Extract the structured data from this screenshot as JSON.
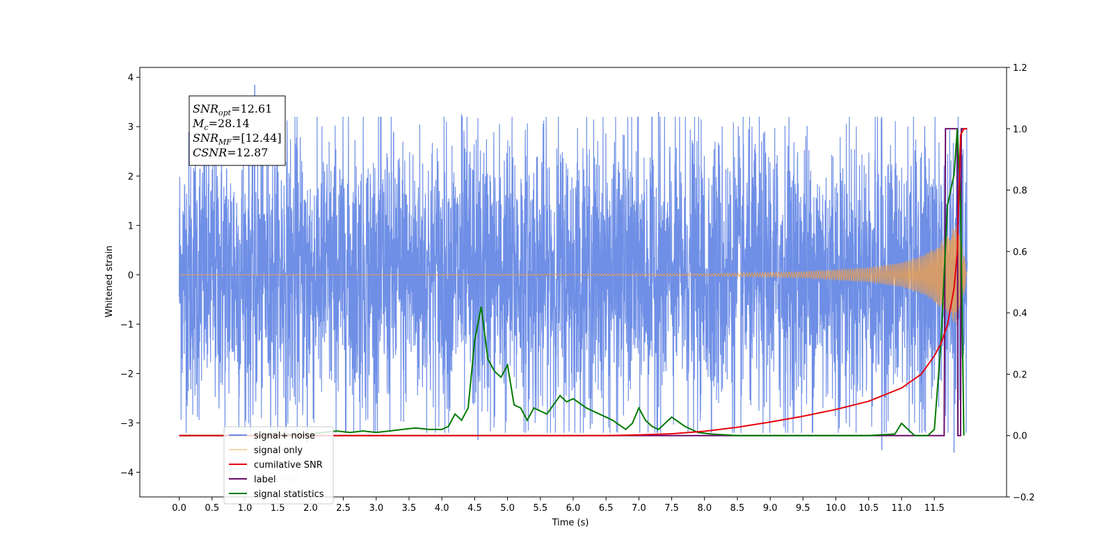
{
  "chart_data": {
    "type": "line",
    "xlabel": "Time (s)",
    "ylabel": "Whitened strain",
    "ylim": [
      -4.5,
      4.2
    ],
    "y2lim": [
      -0.2,
      1.2
    ],
    "xlim": [
      -0.6,
      12.6
    ],
    "x_ticks": [
      "0.0",
      "0.5",
      "1.0",
      "1.5",
      "2.0",
      "2.5",
      "3.0",
      "3.5",
      "4.0",
      "4.5",
      "5.0",
      "5.5",
      "6.0",
      "6.5",
      "7.0",
      "7.5",
      "8.0",
      "8.5",
      "9.0",
      "9.5",
      "10.0",
      "10.5",
      "11.0",
      "11.5"
    ],
    "y_ticks": [
      "4",
      "3",
      "2",
      "1",
      "0",
      "−1",
      "−2",
      "−3",
      "−4"
    ],
    "y2_ticks": [
      "1.2",
      "1.0",
      "0.8",
      "0.6",
      "0.4",
      "0.2",
      "0.0",
      "−0.2"
    ],
    "annotation": {
      "lines": [
        {
          "sym": "SNR",
          "sub": "opt",
          "val": "=12.61"
        },
        {
          "sym": "M",
          "sub": "c",
          "val": "=28.14"
        },
        {
          "sym": "SNR",
          "sub": "MF",
          "val": "=[12.44]"
        },
        {
          "sym": "CSNR",
          "sub": "",
          "val": "=12.87"
        }
      ]
    },
    "legend": {
      "placement": "lower-left",
      "entries": [
        "signal+ noise",
        "signal only",
        "cumilative SNR",
        "label",
        "signal statistics"
      ],
      "hidden_text": [
        "signal + noise",
        "label only"
      ]
    },
    "colors": {
      "noise": "#6f8fe6",
      "signal": "#f5a040",
      "snr": "#e8000b",
      "label": "#6a0a6a",
      "stats": "#007a00"
    },
    "series": [
      {
        "name": "signal+ noise",
        "axis": "left",
        "style": "noise band",
        "x_range": [
          0.0,
          12.0
        ],
        "typical_range": [
          -2.3,
          2.3
        ],
        "spikes": [
          [
            1.15,
            3.85
          ],
          [
            7.3,
            3.3
          ],
          [
            4.3,
            3.25
          ],
          [
            4.55,
            -3.35
          ],
          [
            10.7,
            -3.55
          ],
          [
            11.8,
            -3.6
          ],
          [
            1.95,
            -3.4
          ]
        ]
      },
      {
        "name": "signal only",
        "axis": "left",
        "x": [
          0.0,
          8.0,
          9.5,
          10.5,
          11.0,
          11.3,
          11.5,
          11.7,
          11.85,
          11.95,
          12.0
        ],
        "envelope": [
          0.0,
          0.02,
          0.06,
          0.15,
          0.25,
          0.38,
          0.55,
          0.8,
          1.05,
          0.4,
          0.0
        ]
      },
      {
        "name": "cumilative SNR",
        "axis": "right",
        "x": [
          0.0,
          6.5,
          7.0,
          7.5,
          8.0,
          8.5,
          9.0,
          9.5,
          10.0,
          10.5,
          11.0,
          11.3,
          11.5,
          11.6,
          11.7,
          11.8,
          11.85,
          11.9,
          11.95,
          12.0
        ],
        "y": [
          0.0,
          0.0,
          0.002,
          0.006,
          0.014,
          0.027,
          0.044,
          0.063,
          0.085,
          0.112,
          0.155,
          0.2,
          0.26,
          0.3,
          0.36,
          0.48,
          0.6,
          0.98,
          1.0,
          1.0
        ]
      },
      {
        "name": "label",
        "axis": "right",
        "x": [
          0.0,
          11.65,
          11.67,
          11.85,
          11.86,
          11.9,
          11.91,
          12.0
        ],
        "y": [
          0.0,
          0.0,
          1.0,
          1.0,
          0.0,
          0.0,
          1.0,
          1.0
        ]
      },
      {
        "name": "signal statistics",
        "axis": "right",
        "x": [
          0.0,
          1.0,
          2.0,
          2.2,
          2.4,
          2.6,
          2.8,
          3.0,
          3.2,
          3.4,
          3.6,
          3.8,
          4.0,
          4.1,
          4.2,
          4.3,
          4.4,
          4.5,
          4.6,
          4.7,
          4.8,
          4.9,
          5.0,
          5.1,
          5.2,
          5.3,
          5.4,
          5.6,
          5.8,
          5.9,
          6.0,
          6.2,
          6.4,
          6.6,
          6.8,
          6.9,
          7.0,
          7.1,
          7.2,
          7.3,
          7.5,
          7.7,
          7.9,
          8.1,
          8.5,
          10.5,
          10.9,
          11.0,
          11.2,
          11.4,
          11.5,
          11.6,
          11.7,
          11.8,
          11.85,
          11.9,
          11.95
        ],
        "y": [
          0.0,
          0.0,
          0.005,
          0.01,
          0.015,
          0.01,
          0.015,
          0.01,
          0.015,
          0.02,
          0.025,
          0.02,
          0.02,
          0.03,
          0.07,
          0.05,
          0.09,
          0.31,
          0.42,
          0.25,
          0.21,
          0.19,
          0.23,
          0.1,
          0.09,
          0.05,
          0.09,
          0.07,
          0.13,
          0.11,
          0.12,
          0.09,
          0.07,
          0.05,
          0.02,
          0.04,
          0.09,
          0.05,
          0.03,
          0.02,
          0.06,
          0.03,
          0.01,
          0.005,
          0.0,
          0.0,
          0.005,
          0.04,
          0.0,
          0.0,
          0.02,
          0.3,
          0.75,
          0.85,
          1.0,
          0.75,
          0.0
        ]
      }
    ]
  }
}
